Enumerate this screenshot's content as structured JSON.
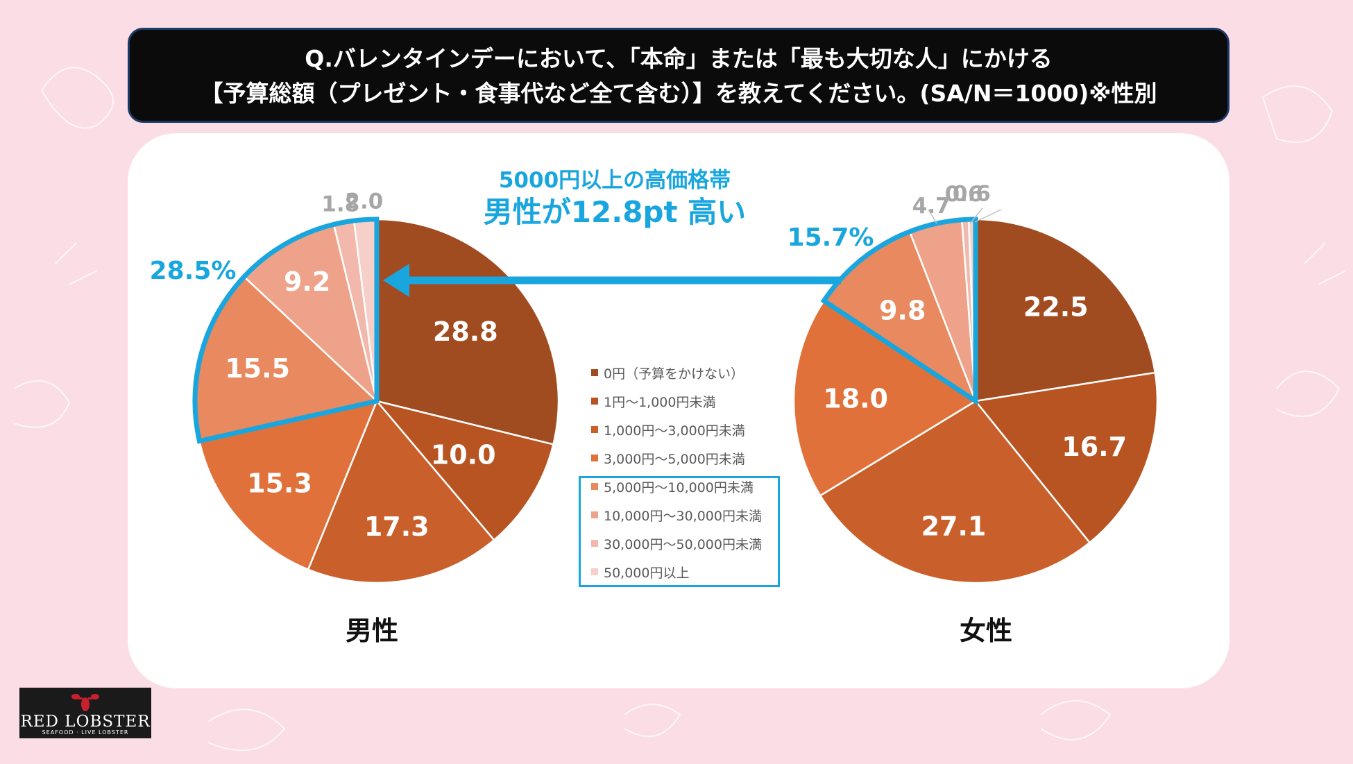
{
  "title": {
    "line1": "Q.バレンタインデーにおいて、「本命」または「最も大切な人」にかける",
    "line2": "【予算総額（プレゼント・食事代など全て含む）】を教えてください。(SA/N＝1000)※性別"
  },
  "callout": {
    "line1": "5000円以上の高価格帯",
    "line2": "男性が12.8pt 高い"
  },
  "captions": {
    "male": "男性",
    "female": "女性"
  },
  "logo": {
    "name": "RED LOBSTER",
    "sub": "SEAFOOD · LIVE LOBSTER"
  },
  "legend": [
    "0円（予算をかけない）",
    "1円〜1,000円未満",
    "1,000円〜3,000円未満",
    "3,000円〜5,000円未満",
    "5,000円〜10,000円未満",
    "10,000円〜30,000円未満",
    "30,000円〜50,000円未満",
    "50,000円以上"
  ],
  "chart_data": [
    {
      "type": "pie",
      "title": "男性",
      "categories": [
        "0円（予算をかけない）",
        "1円〜1,000円未満",
        "1,000円〜3,000円未満",
        "3,000円〜5,000円未満",
        "5,000円〜10,000円未満",
        "10,000円〜30,000円未満",
        "30,000円〜50,000円未満",
        "50,000円以上"
      ],
      "values": [
        28.8,
        10.0,
        17.3,
        15.3,
        15.5,
        9.2,
        1.8,
        2.0
      ],
      "labels": [
        "28.8",
        "10.0",
        "17.3",
        "15.3",
        "15.5",
        "9.2",
        "1.8",
        "2.0"
      ],
      "highlight_total": "28.5%"
    },
    {
      "type": "pie",
      "title": "女性",
      "categories": [
        "0円（予算をかけない）",
        "1円〜1,000円未満",
        "1,000円〜3,000円未満",
        "3,000円〜5,000円未満",
        "5,000円〜10,000円未満",
        "10,000円〜30,000円未満",
        "30,000円〜50,000円未満",
        "50,000円以上"
      ],
      "values": [
        22.5,
        16.7,
        27.1,
        18.0,
        9.8,
        4.7,
        0.6,
        0.6
      ],
      "labels": [
        "22.5",
        "16.7",
        "27.1",
        "18.0",
        "9.8",
        "4.7",
        "0.6",
        "0.6"
      ],
      "highlight_total": "15.7%"
    }
  ],
  "colors": {
    "slices": [
      "#a14c20",
      "#b75422",
      "#c95f2a",
      "#e1713a",
      "#e88960",
      "#eea28a",
      "#f1b8ab",
      "#f6cfc9"
    ],
    "highlight": "#19a6de",
    "small_label": "#a6a6a6"
  }
}
